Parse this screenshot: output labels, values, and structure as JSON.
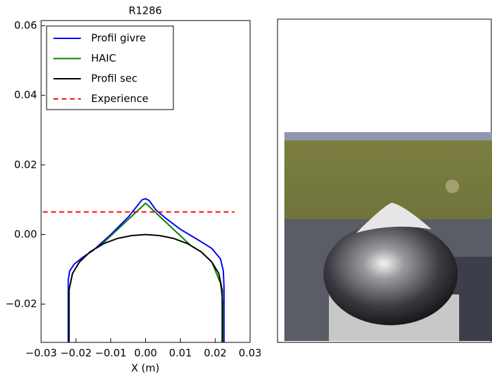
{
  "chart_data": {
    "type": "line",
    "title": "R1286",
    "x_label": "X (m)",
    "xlim": [
      -0.03,
      0.03
    ],
    "ylim": [
      -0.031,
      0.0615
    ],
    "xticks": [
      {
        "value": -0.03,
        "label": "−0.03"
      },
      {
        "value": -0.02,
        "label": "−0.02"
      },
      {
        "value": -0.01,
        "label": "−0.01"
      },
      {
        "value": 0,
        "label": "0.00"
      },
      0.01,
      0.02,
      0.03
    ],
    "yticks": [
      {
        "value": -0.02,
        "label": "−0.02"
      },
      {
        "value": 0,
        "label": "0.00"
      },
      0.02,
      0.04,
      0.06
    ],
    "legend": "upper-left",
    "series": [
      {
        "name": "Profil givre",
        "color": "#0000ff",
        "style": "solid",
        "x": [
          -0.0222,
          -0.0222,
          -0.0218,
          -0.0205,
          -0.018,
          -0.015,
          -0.01,
          -0.005,
          -0.001,
          0,
          0.001,
          0.003,
          0.006,
          0.01,
          0.015,
          0.019,
          0.0215,
          0.0223,
          0.0225,
          0.0225
        ],
        "values": [
          -0.031,
          -0.013,
          -0.0105,
          -0.0085,
          -0.0065,
          -0.0045,
          0,
          0.005,
          0.01,
          0.0103,
          0.0098,
          0.007,
          0.0045,
          0.0015,
          -0.0015,
          -0.004,
          -0.007,
          -0.0105,
          -0.015,
          -0.031
        ]
      },
      {
        "name": "HAIC",
        "color": "#008000",
        "style": "solid",
        "x": [
          -0.022,
          -0.022,
          -0.021,
          -0.019,
          -0.016,
          -0.013,
          0,
          0.013,
          0.016,
          0.019,
          0.0215,
          0.0222,
          0.0222
        ],
        "values": [
          -0.031,
          -0.016,
          -0.0112,
          -0.0079,
          -0.005,
          -0.0032,
          0.009,
          -0.0032,
          -0.005,
          -0.0079,
          -0.014,
          -0.02,
          -0.031
        ]
      },
      {
        "name": "Profil sec",
        "color": "#000000",
        "style": "solid",
        "x": [
          -0.022,
          -0.022,
          -0.021,
          -0.019,
          -0.016,
          -0.012,
          -0.008,
          -0.004,
          0,
          0.004,
          0.008,
          0.012,
          0.016,
          0.019,
          0.021,
          0.022,
          0.022
        ],
        "values": [
          -0.031,
          -0.016,
          -0.0112,
          -0.0079,
          -0.005,
          -0.0026,
          -0.0011,
          -0.0003,
          0,
          -0.0003,
          -0.0011,
          -0.0026,
          -0.005,
          -0.0079,
          -0.0112,
          -0.016,
          -0.031
        ]
      },
      {
        "name": "Experience",
        "color": "#ff0000",
        "style": "dashed",
        "x": [
          -0.0295,
          0.0255
        ],
        "values": [
          0.0065,
          0.0065
        ]
      }
    ]
  }
}
